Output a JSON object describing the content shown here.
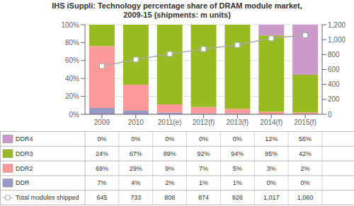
{
  "chart_data": {
    "type": "bar",
    "title": "IHS iSuppli: Technology percentage share of DRAM module market,\n2009-15 (shipments: m units)",
    "categories": [
      "2009",
      "2010",
      "2011(e)",
      "2012(f)",
      "2013(f)",
      "2014(f)",
      "2015(f)"
    ],
    "stacked": true,
    "grid": true,
    "ylim": [
      0,
      100
    ],
    "yticks": [
      {
        "value": 0,
        "label": "0%"
      },
      {
        "value": 20,
        "label": "20%"
      },
      {
        "value": 40,
        "label": "40%"
      },
      {
        "value": 60,
        "label": "60%"
      },
      {
        "value": 80,
        "label": "80%"
      },
      {
        "value": 100,
        "label": "100%"
      }
    ],
    "y2lim": [
      0,
      1200
    ],
    "y2ticks": [
      0,
      200,
      400,
      600,
      800,
      {
        "value": 1000,
        "label": "1,000"
      },
      {
        "value": 1200,
        "label": "1,200"
      }
    ],
    "series": [
      {
        "name": "DDR",
        "color": "#9999cc",
        "values": [
          7,
          4,
          2,
          1,
          1,
          0,
          0
        ],
        "value_labels": [
          "7%",
          "4%",
          "2%",
          "1%",
          "1%",
          "0%",
          "0%"
        ]
      },
      {
        "name": "DDR2",
        "color": "#ff9999",
        "values": [
          69,
          29,
          9,
          7,
          5,
          3,
          2
        ],
        "value_labels": [
          "69%",
          "29%",
          "9%",
          "7%",
          "5%",
          "3%",
          "2%"
        ]
      },
      {
        "name": "DDR3",
        "color": "#99bb22",
        "values": [
          24,
          67,
          89,
          92,
          94,
          85,
          42
        ],
        "value_labels": [
          "24%",
          "67%",
          "89%",
          "92%",
          "94%",
          "85%",
          "42%"
        ]
      },
      {
        "name": "DDR4",
        "color": "#cc99cc",
        "values": [
          0,
          0,
          0,
          0,
          0,
          12,
          56
        ],
        "value_labels": [
          "0%",
          "0%",
          "0%",
          "0%",
          "0%",
          "12%",
          "56%"
        ]
      },
      {
        "name": "Total modules shipped",
        "type": "line",
        "axis": "y2",
        "color": "#aaaaaa",
        "marker": "square",
        "values": [
          645,
          733,
          808,
          874,
          928,
          1017,
          1060
        ],
        "value_labels": [
          "645",
          "733",
          "808",
          "874",
          "928",
          "1,017",
          "1,060"
        ]
      }
    ]
  }
}
